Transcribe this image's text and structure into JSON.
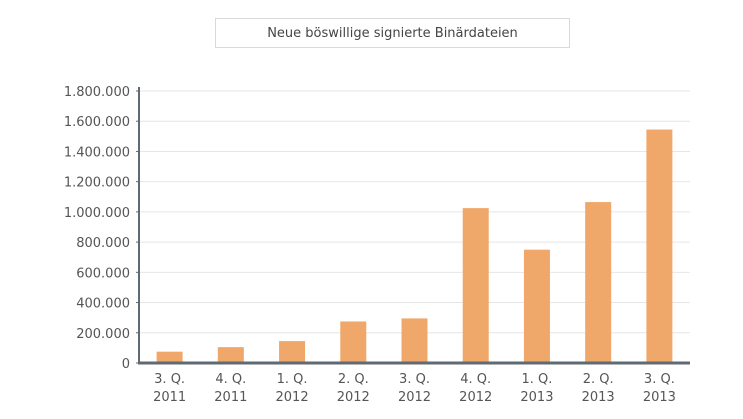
{
  "chart_data": {
    "type": "bar",
    "title": "Neue böswillige signierte Binärdateien",
    "categories": [
      [
        "3. Q.",
        "2011"
      ],
      [
        "4. Q.",
        "2011"
      ],
      [
        "1. Q.",
        "2012"
      ],
      [
        "2. Q.",
        "2012"
      ],
      [
        "3. Q.",
        "2012"
      ],
      [
        "4. Q.",
        "2012"
      ],
      [
        "1. Q.",
        "2013"
      ],
      [
        "2. Q.",
        "2013"
      ],
      [
        "3. Q.",
        "2013"
      ]
    ],
    "values": [
      75000,
      105000,
      145000,
      275000,
      295000,
      1025000,
      750000,
      1065000,
      1545000
    ],
    "ylim": [
      0,
      1800000
    ],
    "yticks": [
      0,
      200000,
      400000,
      600000,
      800000,
      1000000,
      1200000,
      1400000,
      1600000,
      1800000
    ],
    "ytick_labels": [
      "0",
      "200.000",
      "400.000",
      "600.000",
      "800.000",
      "1.000.000",
      "1.200.000",
      "1.400.000",
      "1.600.000",
      "1.800.000"
    ],
    "grid": true,
    "legend": "none",
    "bar_color": "#f0a86a",
    "axis_color": "#606a72",
    "grid_color": "#e6e6e6"
  }
}
